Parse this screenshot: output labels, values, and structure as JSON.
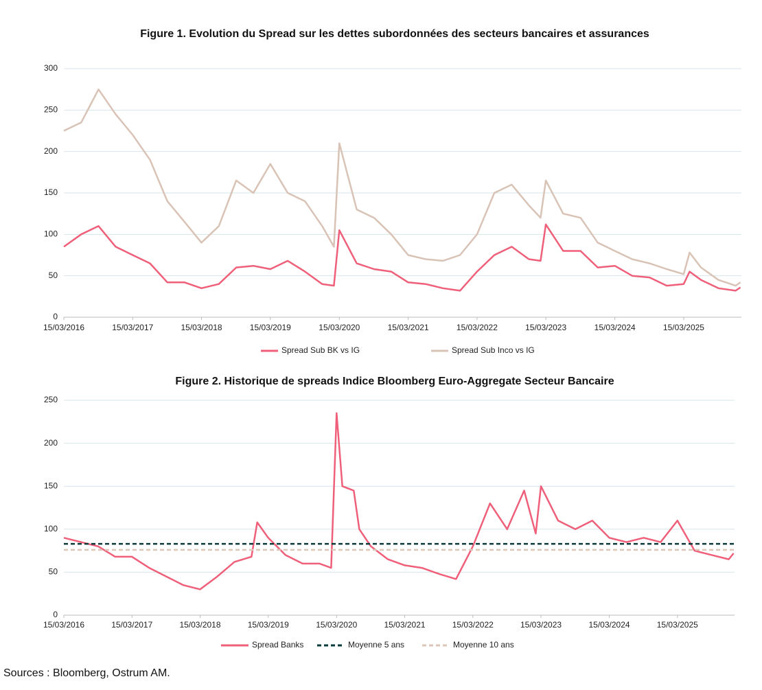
{
  "chart_data": [
    {
      "type": "line",
      "title": "Figure 1. Evolution du Spread sur les dettes subordonnées des secteurs bancaires et assurances",
      "x": [
        "2016-03-15",
        "2016-06-15",
        "2016-09-15",
        "2016-12-15",
        "2017-03-15",
        "2017-06-15",
        "2017-09-15",
        "2017-12-15",
        "2018-03-15",
        "2018-06-15",
        "2018-09-15",
        "2018-12-15",
        "2019-03-15",
        "2019-06-15",
        "2019-09-15",
        "2019-12-15",
        "2020-02-15",
        "2020-03-15",
        "2020-06-15",
        "2020-09-15",
        "2020-12-15",
        "2021-03-15",
        "2021-06-15",
        "2021-09-15",
        "2021-12-15",
        "2022-03-15",
        "2022-06-15",
        "2022-09-15",
        "2022-12-15",
        "2023-02-15",
        "2023-03-15",
        "2023-06-15",
        "2023-09-15",
        "2023-12-15",
        "2024-03-15",
        "2024-06-15",
        "2024-09-15",
        "2024-12-15",
        "2025-03-15",
        "2025-04-15",
        "2025-06-15",
        "2025-09-15",
        "2025-12-15",
        "2026-01-10"
      ],
      "series": [
        {
          "name": "Spread Sub BK vs IG",
          "color": "#ef5f79",
          "values": [
            85,
            100,
            110,
            85,
            75,
            65,
            42,
            42,
            35,
            40,
            60,
            62,
            58,
            68,
            55,
            40,
            38,
            105,
            65,
            58,
            55,
            42,
            40,
            35,
            32,
            55,
            75,
            85,
            70,
            68,
            112,
            80,
            80,
            60,
            62,
            50,
            48,
            38,
            40,
            55,
            45,
            35,
            32,
            36
          ]
        },
        {
          "name": "Spread Sub Inco vs IG",
          "color": "#d8c3b6",
          "values": [
            225,
            235,
            275,
            245,
            220,
            190,
            140,
            115,
            90,
            110,
            165,
            150,
            185,
            150,
            140,
            110,
            85,
            210,
            130,
            120,
            100,
            75,
            70,
            68,
            75,
            100,
            150,
            160,
            135,
            120,
            165,
            125,
            120,
            90,
            80,
            70,
            65,
            58,
            52,
            78,
            60,
            45,
            38,
            42
          ]
        }
      ],
      "xlim": [
        "2016-03-15",
        "2026-01-15"
      ],
      "xticks": [
        {
          "value": "2016-03-15",
          "label": "15/03/2016"
        },
        {
          "value": "2017-03-15",
          "label": "15/03/2017"
        },
        {
          "value": "2018-03-15",
          "label": "15/03/2018"
        },
        {
          "value": "2019-03-15",
          "label": "15/03/2019"
        },
        {
          "value": "2020-03-15",
          "label": "15/03/2020"
        },
        {
          "value": "2021-03-15",
          "label": "15/03/2021"
        },
        {
          "value": "2022-03-15",
          "label": "15/03/2022"
        },
        {
          "value": "2023-03-15",
          "label": "15/03/2023"
        },
        {
          "value": "2024-03-15",
          "label": "15/03/2024"
        },
        {
          "value": "2025-03-15",
          "label": "15/03/2025"
        }
      ],
      "ylim": [
        0,
        300
      ],
      "yticks": [
        0,
        50,
        100,
        150,
        200,
        250,
        300
      ],
      "grid": true
    },
    {
      "type": "line",
      "title": "Figure 2. Historique de spreads Indice Bloomberg Euro-Aggregate Secteur Bancaire",
      "x": [
        "2016-03-15",
        "2016-06-15",
        "2016-09-15",
        "2016-12-15",
        "2017-03-15",
        "2017-06-15",
        "2017-09-15",
        "2017-12-15",
        "2018-03-15",
        "2018-06-15",
        "2018-09-15",
        "2018-12-15",
        "2019-01-15",
        "2019-03-15",
        "2019-06-15",
        "2019-09-15",
        "2019-12-15",
        "2020-02-15",
        "2020-03-15",
        "2020-04-15",
        "2020-06-15",
        "2020-07-15",
        "2020-09-15",
        "2020-12-15",
        "2021-03-15",
        "2021-06-15",
        "2021-09-15",
        "2021-12-15",
        "2022-03-15",
        "2022-06-15",
        "2022-09-15",
        "2022-12-15",
        "2023-02-15",
        "2023-03-15",
        "2023-06-15",
        "2023-09-15",
        "2023-12-15",
        "2024-03-15",
        "2024-06-15",
        "2024-09-15",
        "2024-12-15",
        "2025-03-15",
        "2025-06-15",
        "2025-09-15",
        "2025-12-15",
        "2026-01-10"
      ],
      "series": [
        {
          "name": "Spread Banks",
          "color": "#ef5f79",
          "values": [
            90,
            85,
            80,
            68,
            68,
            55,
            45,
            35,
            30,
            45,
            62,
            68,
            108,
            90,
            70,
            60,
            60,
            55,
            235,
            150,
            145,
            100,
            80,
            65,
            58,
            55,
            48,
            42,
            80,
            130,
            100,
            145,
            95,
            150,
            110,
            100,
            110,
            90,
            85,
            90,
            85,
            110,
            75,
            70,
            65,
            72
          ]
        }
      ],
      "reference_lines": [
        {
          "name": "Moyenne 5 ans",
          "color": "#0b3a3a",
          "value": 83
        },
        {
          "name": "Moyenne 10 ans",
          "color": "#dcc6ba",
          "value": 76
        }
      ],
      "xlim": [
        "2016-03-15",
        "2026-01-15"
      ],
      "xticks": [
        {
          "value": "2016-03-15",
          "label": "15/03/2016"
        },
        {
          "value": "2017-03-15",
          "label": "15/03/2017"
        },
        {
          "value": "2018-03-15",
          "label": "15/03/2018"
        },
        {
          "value": "2019-03-15",
          "label": "15/03/2019"
        },
        {
          "value": "2020-03-15",
          "label": "15/03/2020"
        },
        {
          "value": "2021-03-15",
          "label": "15/03/2021"
        },
        {
          "value": "2022-03-15",
          "label": "15/03/2022"
        },
        {
          "value": "2023-03-15",
          "label": "15/03/2023"
        },
        {
          "value": "2024-03-15",
          "label": "15/03/2024"
        },
        {
          "value": "2025-03-15",
          "label": "15/03/2025"
        }
      ],
      "ylim": [
        0,
        250
      ],
      "yticks": [
        0,
        50,
        100,
        150,
        200,
        250
      ],
      "grid": true
    }
  ],
  "source": "Sources : Bloomberg, Ostrum AM."
}
